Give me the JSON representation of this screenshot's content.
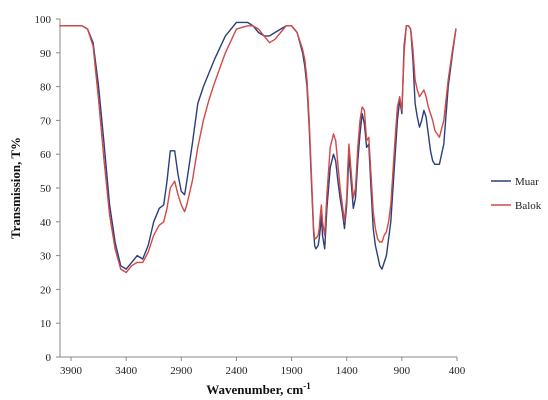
{
  "chart_data": {
    "type": "line",
    "xlabel": "Wavenumber, cm",
    "xlabel_superscript": "-1",
    "ylabel": "Transmission, T%",
    "xlim": [
      4000,
      400
    ],
    "ylim": [
      0,
      100
    ],
    "x_ticks": [
      "3900",
      "3400",
      "2900",
      "2400",
      "1900",
      "1400",
      "900",
      "400"
    ],
    "y_ticks": [
      "0",
      "10",
      "20",
      "30",
      "40",
      "50",
      "60",
      "70",
      "80",
      "90",
      "100"
    ],
    "grid": false,
    "legend_position": "right",
    "series": [
      {
        "name": "Muar",
        "color": "#2b3f7a",
        "x": [
          4000,
          3800,
          3750,
          3700,
          3650,
          3600,
          3550,
          3500,
          3450,
          3400,
          3350,
          3300,
          3250,
          3200,
          3150,
          3100,
          3060,
          3030,
          3000,
          2960,
          2930,
          2900,
          2870,
          2850,
          2800,
          2750,
          2700,
          2650,
          2600,
          2500,
          2400,
          2300,
          2250,
          2200,
          2150,
          2100,
          2050,
          2000,
          1950,
          1900,
          1850,
          1800,
          1780,
          1760,
          1740,
          1720,
          1700,
          1690,
          1680,
          1660,
          1650,
          1640,
          1630,
          1620,
          1600,
          1580,
          1550,
          1520,
          1500,
          1480,
          1460,
          1440,
          1420,
          1400,
          1390,
          1380,
          1360,
          1340,
          1320,
          1300,
          1280,
          1260,
          1240,
          1220,
          1200,
          1180,
          1160,
          1140,
          1120,
          1100,
          1080,
          1060,
          1040,
          1020,
          1000,
          980,
          960,
          940,
          920,
          900,
          880,
          860,
          840,
          820,
          800,
          780,
          760,
          740,
          720,
          700,
          680,
          660,
          640,
          620,
          600,
          560,
          520,
          480,
          440,
          410
        ],
        "y": [
          98,
          98,
          97,
          93,
          80,
          63,
          45,
          34,
          27,
          26,
          28,
          30,
          29,
          33,
          40,
          44,
          45,
          52,
          61,
          61,
          54,
          49,
          48,
          52,
          63,
          75,
          80,
          84,
          88,
          95,
          99,
          99,
          98,
          96,
          95,
          95,
          96,
          97,
          98,
          98,
          96,
          90,
          86,
          80,
          68,
          52,
          37,
          33,
          32,
          33,
          35,
          38,
          42,
          36,
          32,
          44,
          56,
          60,
          58,
          52,
          47,
          43,
          38,
          45,
          52,
          60,
          52,
          44,
          47,
          58,
          66,
          72,
          69,
          62,
          63,
          50,
          38,
          33,
          30,
          27,
          26,
          28,
          30,
          35,
          40,
          50,
          60,
          70,
          76,
          72,
          92,
          98,
          98,
          97,
          88,
          75,
          71,
          68,
          70,
          73,
          71,
          66,
          61,
          58,
          57,
          57,
          63,
          80,
          90,
          97
        ]
      },
      {
        "name": "Balok",
        "color": "#d04a48",
        "x": [
          4000,
          3800,
          3750,
          3700,
          3650,
          3600,
          3550,
          3500,
          3450,
          3400,
          3350,
          3300,
          3250,
          3200,
          3150,
          3100,
          3060,
          3030,
          3000,
          2960,
          2930,
          2900,
          2870,
          2850,
          2800,
          2750,
          2700,
          2650,
          2600,
          2500,
          2400,
          2300,
          2250,
          2200,
          2150,
          2100,
          2050,
          2000,
          1950,
          1900,
          1850,
          1800,
          1780,
          1760,
          1740,
          1720,
          1700,
          1690,
          1680,
          1660,
          1650,
          1640,
          1630,
          1620,
          1600,
          1580,
          1550,
          1520,
          1500,
          1480,
          1460,
          1440,
          1420,
          1400,
          1390,
          1380,
          1360,
          1340,
          1320,
          1300,
          1280,
          1260,
          1240,
          1220,
          1200,
          1180,
          1160,
          1140,
          1120,
          1100,
          1080,
          1060,
          1040,
          1020,
          1000,
          980,
          960,
          940,
          920,
          900,
          880,
          860,
          840,
          820,
          800,
          780,
          760,
          740,
          720,
          700,
          680,
          660,
          640,
          620,
          600,
          560,
          520,
          480,
          440,
          410
        ],
        "y": [
          98,
          98,
          97,
          92,
          76,
          58,
          42,
          32,
          26,
          25,
          27,
          28,
          28,
          31,
          36,
          39,
          40,
          44,
          50,
          52,
          48,
          45,
          43,
          45,
          52,
          62,
          70,
          76,
          81,
          90,
          97,
          98,
          98,
          97,
          95,
          93,
          94,
          96,
          98,
          98,
          96,
          91,
          88,
          82,
          70,
          54,
          38,
          35,
          35,
          36,
          38,
          42,
          45,
          40,
          36,
          48,
          62,
          66,
          64,
          57,
          50,
          45,
          40,
          47,
          56,
          63,
          55,
          47,
          50,
          62,
          70,
          74,
          73,
          64,
          65,
          54,
          43,
          38,
          35,
          34,
          34,
          36,
          37,
          40,
          45,
          55,
          65,
          74,
          77,
          73,
          90,
          98,
          98,
          97,
          91,
          82,
          79,
          77,
          78,
          79,
          77,
          74,
          72,
          70,
          67,
          65,
          70,
          82,
          91,
          97
        ]
      }
    ]
  }
}
